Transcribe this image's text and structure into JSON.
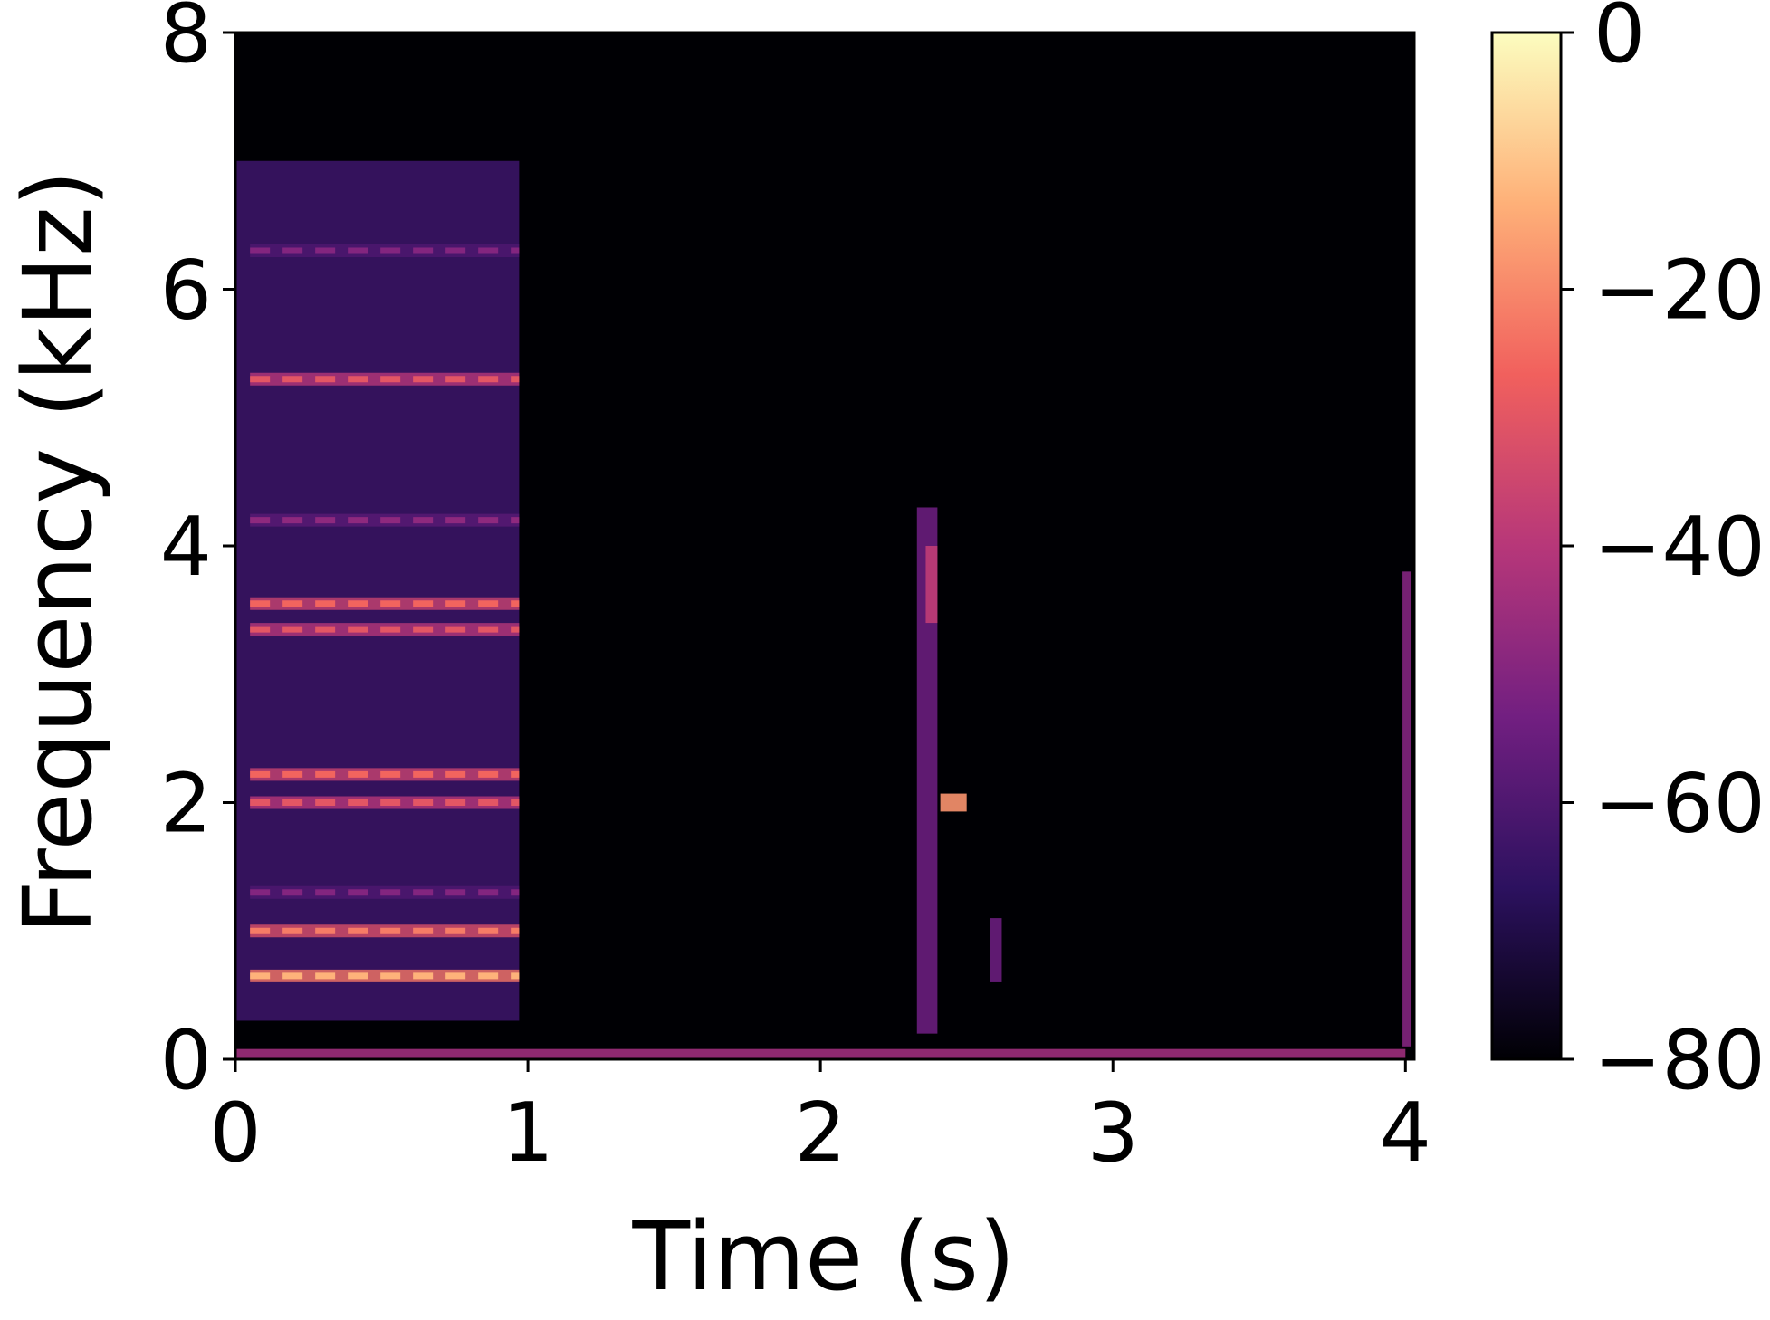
{
  "chart_data": {
    "type": "heatmap",
    "title": "",
    "xlabel": "Time (s)",
    "ylabel": "Frequency (kHz)",
    "xlim": [
      0,
      4
    ],
    "ylim": [
      0,
      8
    ],
    "x_ticks": [
      0,
      1,
      2,
      3,
      4
    ],
    "y_ticks": [
      0,
      2,
      4,
      6,
      8
    ],
    "grid": false,
    "colormap": "magma",
    "colormap_stops": [
      "#000004",
      "#2c115f",
      "#721f81",
      "#b73779",
      "#f1605d",
      "#feb078",
      "#fcfdbf"
    ],
    "colorbar": {
      "range": [
        -80,
        0
      ],
      "ticks": [
        0,
        -20,
        -40,
        -60,
        -80
      ],
      "tick_labels": [
        "0",
        "−20",
        "−40",
        "−60",
        "−80"
      ]
    },
    "background_db": -80,
    "harmonic_rows": [
      {
        "freq_khz": 0.65,
        "t_start": 0.05,
        "t_end": 0.97,
        "db": -13
      },
      {
        "freq_khz": 1.0,
        "t_start": 0.05,
        "t_end": 0.97,
        "db": -22
      },
      {
        "freq_khz": 1.3,
        "t_start": 0.05,
        "t_end": 0.97,
        "db": -50
      },
      {
        "freq_khz": 2.0,
        "t_start": 0.05,
        "t_end": 0.97,
        "db": -30
      },
      {
        "freq_khz": 2.22,
        "t_start": 0.05,
        "t_end": 0.97,
        "db": -26
      },
      {
        "freq_khz": 3.35,
        "t_start": 0.05,
        "t_end": 0.97,
        "db": -30
      },
      {
        "freq_khz": 3.55,
        "t_start": 0.05,
        "t_end": 0.97,
        "db": -26
      },
      {
        "freq_khz": 4.2,
        "t_start": 0.05,
        "t_end": 0.97,
        "db": -48
      },
      {
        "freq_khz": 5.3,
        "t_start": 0.05,
        "t_end": 0.97,
        "db": -30
      },
      {
        "freq_khz": 6.3,
        "t_start": 0.05,
        "t_end": 0.97,
        "db": -50
      }
    ],
    "events": [
      {
        "t_start": 0.0,
        "t_end": 0.97,
        "f_low": 0.3,
        "f_high": 7.0,
        "db": -64
      },
      {
        "t_start": 2.33,
        "t_end": 2.4,
        "f_low": 0.2,
        "f_high": 4.3,
        "db": -55
      },
      {
        "t_start": 2.36,
        "t_end": 2.4,
        "f_low": 3.4,
        "f_high": 4.0,
        "db": -38
      },
      {
        "t_start": 2.41,
        "t_end": 2.5,
        "f_low": 1.93,
        "f_high": 2.07,
        "db": -18
      },
      {
        "t_start": 2.58,
        "t_end": 2.62,
        "f_low": 0.6,
        "f_high": 1.1,
        "db": -55
      },
      {
        "t_start": 3.99,
        "t_end": 4.02,
        "f_low": 0.1,
        "f_high": 3.8,
        "db": -50
      },
      {
        "t_start": 0.0,
        "t_end": 4.0,
        "f_low": 0.0,
        "f_high": 0.08,
        "db": -45
      }
    ]
  }
}
